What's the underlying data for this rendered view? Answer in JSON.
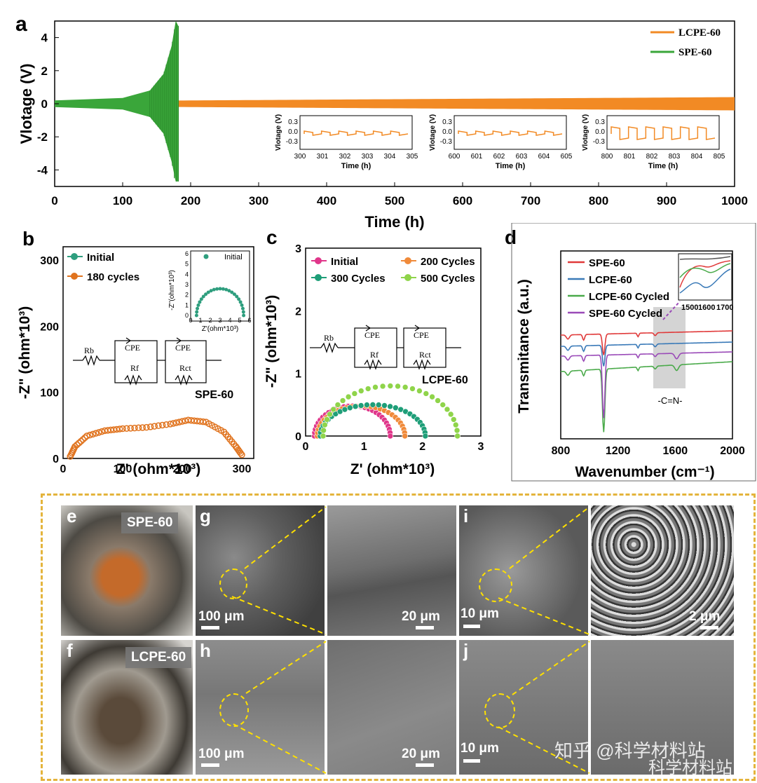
{
  "chart_data": [
    {
      "panel": "a",
      "type": "line",
      "xlabel": "Time (h)",
      "ylabel": "Vlotage (V)",
      "xlim": [
        0,
        1000
      ],
      "ylim": [
        -5,
        5
      ],
      "xticks": [
        0,
        100,
        200,
        300,
        400,
        500,
        600,
        700,
        800,
        900,
        1000
      ],
      "yticks": [
        -4,
        -2,
        0,
        2,
        4
      ],
      "legend_position": "top-right",
      "series": [
        {
          "name": "LCPE-60",
          "color": "#f28a24",
          "x_range": [
            0,
            1000
          ],
          "amplitude": [
            0.15,
            0.4
          ]
        },
        {
          "name": "SPE-60",
          "color": "#3aa63a",
          "x_range": [
            0,
            182
          ],
          "amplitude_points": [
            [
              0,
              0.2
            ],
            [
              100,
              0.35
            ],
            [
              140,
              0.8
            ],
            [
              160,
              1.8
            ],
            [
              172,
              3.5
            ],
            [
              178,
              5
            ],
            [
              182,
              4.7
            ]
          ]
        }
      ],
      "insets": [
        {
          "xlabel": "Time (h)",
          "ylabel": "Vlotage (V)",
          "xticks": [
            "300",
            "301",
            "302",
            "303",
            "304",
            "305"
          ],
          "yticks": [
            "0.3",
            "0.0",
            "-0.3"
          ]
        },
        {
          "xlabel": "Time (h)",
          "ylabel": "Vlotage (V)",
          "xticks": [
            "600",
            "601",
            "602",
            "603",
            "604",
            "605"
          ],
          "yticks": [
            "0.3",
            "0.0",
            "-0.3"
          ]
        },
        {
          "xlabel": "Time (h)",
          "ylabel": "Vlotage (V)",
          "xticks": [
            "800",
            "801",
            "802",
            "803",
            "804",
            "805"
          ],
          "yticks": [
            "0.3",
            "0.0",
            "-0.3"
          ]
        }
      ]
    },
    {
      "panel": "b",
      "type": "scatter",
      "xlabel": "Z' (ohm*10³)",
      "ylabel": "-Z\" (ohm*10³)",
      "xlim": [
        0,
        320
      ],
      "ylim": [
        0,
        320
      ],
      "xticks": [
        "0",
        "100",
        "200",
        "300"
      ],
      "yticks": [
        "0",
        "100",
        "200",
        "300"
      ],
      "annotation": "SPE-60",
      "series": [
        {
          "name": "Initial",
          "color": "#2e9e7e"
        },
        {
          "name": "180 cycles",
          "color": "#e0731e",
          "points": [
            [
              12,
              3
            ],
            [
              20,
              18
            ],
            [
              40,
              34
            ],
            [
              70,
              42
            ],
            [
              100,
              45
            ],
            [
              140,
              47
            ],
            [
              180,
              52
            ],
            [
              210,
              58
            ],
            [
              240,
              55
            ],
            [
              270,
              40
            ],
            [
              290,
              18
            ],
            [
              302,
              3
            ]
          ]
        }
      ],
      "inset": {
        "title": "Initial",
        "xlabel": "Z'(ohm*10³)",
        "ylabel": "-Z''(ohm*10³)",
        "xticks": [
          "0",
          "1",
          "2",
          "3",
          "4",
          "5",
          "6"
        ],
        "yticks": [
          "0",
          "1",
          "2",
          "3",
          "4",
          "5",
          "6"
        ],
        "points": [
          [
            0.6,
            0
          ],
          [
            3,
            2.6
          ],
          [
            5.4,
            0
          ]
        ]
      },
      "circuit": {
        "labels": [
          "Rb",
          "CPE",
          "Rf",
          "CPE",
          "Rct"
        ]
      }
    },
    {
      "panel": "c",
      "type": "scatter",
      "xlabel": "Z' (ohm*10³)",
      "ylabel": "-Z\" (ohm*10³)",
      "xlim": [
        0,
        3
      ],
      "ylim": [
        0,
        3
      ],
      "xticks": [
        "0",
        "1",
        "2",
        "3"
      ],
      "yticks": [
        "0",
        "1",
        "2",
        "3"
      ],
      "annotation": "LCPE-60",
      "series": [
        {
          "name": "Initial",
          "color": "#e0368a",
          "arc": [
            0.15,
            1.45,
            0.48
          ]
        },
        {
          "name": "200 Cycles",
          "color": "#f08a3a",
          "arc": [
            0.2,
            1.7,
            0.48
          ]
        },
        {
          "name": "300 Cycles",
          "color": "#1e9e78",
          "arc": [
            0.25,
            2.05,
            0.5
          ]
        },
        {
          "name": "500 Cycles",
          "color": "#8fd44a",
          "arc": [
            0.3,
            2.6,
            0.8
          ]
        }
      ],
      "circuit": {
        "labels": [
          "Rb",
          "CPE",
          "Rf",
          "CPE",
          "Rct"
        ]
      }
    },
    {
      "panel": "d",
      "type": "line",
      "xlabel": "Wavenumber (cm⁻¹)",
      "ylabel": "Transmitance (a.u.)",
      "xlim": [
        800,
        2000
      ],
      "xticks": [
        "800",
        "1200",
        "1600",
        "2000"
      ],
      "highlight": {
        "label": "-C=N-",
        "x_range": [
          1510,
          1700
        ]
      },
      "series": [
        {
          "name": "SPE-60",
          "color": "#e03a3a",
          "offset": 0.82
        },
        {
          "name": "LCPE-60",
          "color": "#3a7ab8",
          "offset": 0.72
        },
        {
          "name": "LCPE-60 Cycled",
          "color": "#4aaa4a",
          "offset": 0.48
        },
        {
          "name": "SPE-60 Cycled",
          "color": "#9a4ab8",
          "offset": 0.62
        }
      ],
      "inset": {
        "xticks": [
          "1500",
          "1600",
          "1700"
        ]
      }
    }
  ],
  "figure": {
    "panel_labels": [
      "a",
      "b",
      "c",
      "d",
      "e",
      "f",
      "g",
      "h",
      "i",
      "j"
    ],
    "photos": {
      "e_tag": "SPE-60",
      "f_tag": "LCPE-60",
      "scale_g1": "100 μm",
      "scale_g2": "20 μm",
      "scale_i1": "10 μm",
      "scale_i2": "2 μm",
      "scale_h1": "100 μm",
      "scale_h2": "20 μm",
      "scale_j1": "10 μm"
    },
    "watermark": "知乎 @科学材料站",
    "watermark2": "科学材料站"
  }
}
